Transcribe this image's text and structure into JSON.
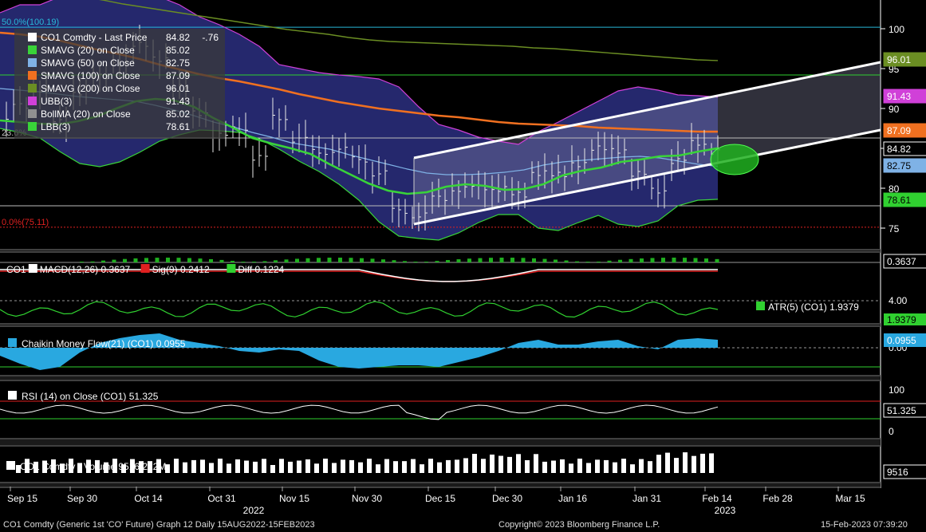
{
  "chart_data": {
    "type": "line",
    "x_axis": {
      "date_ticks": [
        "Sep 15",
        "Sep 30",
        "Oct 14",
        "Oct 31",
        "Nov 15",
        "Nov 30",
        "Dec 15",
        "Dec 30",
        "Jan 16",
        "Jan 31",
        "Feb 14",
        "Feb 28",
        "Mar 15"
      ],
      "year_labels": [
        {
          "label": "2022",
          "at_tick": 3
        },
        {
          "label": "2023",
          "at_tick": 10
        }
      ]
    },
    "price_panel": {
      "y_ticks": [
        100,
        95,
        90,
        85,
        80,
        75
      ],
      "ylim": [
        74,
        104
      ],
      "fib_levels": [
        {
          "label": "50.0%(100.19)",
          "value": 100.19,
          "color": "#28b8d8"
        },
        {
          "label": "23.6%",
          "value": 86.3,
          "color": "#bbbbbb"
        },
        {
          "label": "0.0%(75.11)",
          "value": 75.11,
          "color": "#e02020"
        }
      ],
      "extra_hlines": [
        {
          "value": 94.2,
          "color": "#30d030"
        },
        {
          "value": 77.8,
          "color": "#bbbbbb"
        }
      ],
      "legend": [
        {
          "text": "CO1 Comdty - Last Price",
          "value": "84.82",
          "change": "-.76",
          "color": "#ffffff"
        },
        {
          "text": "SMAVG (20)  on Close",
          "value": "85.02",
          "color": "#39d339"
        },
        {
          "text": "SMAVG (50)  on Close",
          "value": "82.75",
          "color": "#7fb2e6"
        },
        {
          "text": "SMAVG (100)  on Close",
          "value": "87.09",
          "color": "#f07020"
        },
        {
          "text": "SMAVG (200)  on Close",
          "value": "96.01",
          "color": "#6b8e23"
        },
        {
          "text": "UBB(3)",
          "value": "91.43",
          "color": "#d040d8"
        },
        {
          "text": "BollMA (20)  on Close",
          "value": "85.02",
          "color": "#909090"
        },
        {
          "text": "LBB(3)",
          "value": "78.61",
          "color": "#39d339"
        }
      ],
      "right_tags": [
        {
          "value": "96.01",
          "bg": "#6b8e23",
          "fg": "#ffffff"
        },
        {
          "value": "91.43",
          "bg": "#d040d8",
          "fg": "#ffffff"
        },
        {
          "value": "87.09",
          "bg": "#f07020",
          "fg": "#ffffff"
        },
        {
          "value": "84.82",
          "bg": "#000000",
          "fg": "#ffffff"
        },
        {
          "value": "82.75",
          "bg": "#7fb2e6",
          "fg": "#000000"
        },
        {
          "value": "78.61",
          "bg": "#30d030",
          "fg": "#000000"
        }
      ],
      "series": {
        "sma20": [
          88.5,
          88.3,
          88.1,
          88.0,
          88.4,
          89.0,
          90.0,
          90.9,
          91.2,
          91.0,
          90.2,
          88.8,
          87.6,
          86.3,
          85.6,
          85.0,
          84.3,
          83.0,
          81.8,
          80.6,
          79.7,
          79.3,
          79.5,
          80.2,
          80.5,
          80.3,
          79.8,
          79.9,
          80.5,
          81.6,
          82.2,
          82.6,
          83.3,
          83.6,
          84.0,
          84.1,
          84.6,
          85.02
        ],
        "sma50": [
          92.5,
          92.3,
          92.1,
          91.8,
          91.5,
          91.3,
          91.1,
          90.9,
          90.4,
          89.8,
          89.1,
          88.3,
          87.7,
          87.0,
          86.4,
          85.7,
          85.3,
          84.9,
          84.2,
          83.6,
          83.0,
          82.4,
          81.9,
          81.7,
          81.7,
          81.8,
          82.0,
          82.3,
          82.9,
          83.3,
          83.5,
          83.7,
          83.9,
          84.0,
          83.8,
          83.4,
          83.0,
          82.75
        ],
        "sma100": [
          99.5,
          99.3,
          99.0,
          98.5,
          97.9,
          97.3,
          96.8,
          96.2,
          95.5,
          94.9,
          94.3,
          93.8,
          93.4,
          92.9,
          92.4,
          91.8,
          91.3,
          90.8,
          90.4,
          90.0,
          89.7,
          89.4,
          89.1,
          88.9,
          88.6,
          88.3,
          88.1,
          88.0,
          87.9,
          87.8,
          87.6,
          87.5,
          87.4,
          87.3,
          87.2,
          87.1,
          87.09
        ],
        "sma200": [
          106,
          105.5,
          105,
          104.5,
          104.0,
          103.6,
          103.1,
          102.7,
          102.3,
          101.9,
          101.5,
          101.1,
          100.7,
          100.3,
          99.9,
          99.6,
          99.3,
          98.9,
          98.6,
          98.4,
          98.3,
          98.2,
          98.1,
          98.0,
          97.9,
          97.8,
          97.6,
          97.5,
          97.3,
          97.1,
          96.9,
          96.7,
          96.5,
          96.3,
          96.1,
          96.01
        ],
        "ubb": [
          102,
          103,
          103,
          104,
          104,
          104.5,
          105,
          105,
          104,
          103,
          101.5,
          100.5,
          99.3,
          97.8,
          95.5,
          95.0,
          94.5,
          94.2,
          94.0,
          93.7,
          92.7,
          90.2,
          88.0,
          87.3,
          86.4,
          85.9,
          85.5,
          87.1,
          88.3,
          89.6,
          90.9,
          92.2,
          92.7,
          92.3,
          91.7,
          91.6,
          91.43
        ],
        "lbb": [
          87.5,
          87.0,
          86.3,
          84.6,
          83.1,
          82.7,
          83.3,
          84.5,
          85.9,
          86.7,
          87.3,
          87.2,
          87.0,
          86.2,
          84.9,
          83.4,
          82.1,
          80.5,
          78.5,
          75.8,
          74.0,
          73.7,
          73.5,
          74.4,
          75.7,
          76.7,
          76.7,
          75.0,
          74.7,
          75.7,
          76.6,
          75.5,
          75.2,
          75.9,
          77.8,
          78.5,
          78.61
        ],
        "ohlc_close": [
          88.1,
          90.6,
          92.1,
          88.6,
          91.7,
          94.3,
          95.3,
          98.3,
          95.9,
          93.0,
          89.1,
          86.9,
          87.1,
          84.1,
          88.6,
          86.3,
          84.4,
          84.9,
          83.6,
          81.8,
          77.3,
          76.4,
          79.0,
          79.6,
          80.4,
          79.6,
          79.5,
          81.6,
          82.0,
          82.7,
          85.3,
          84.4,
          82.1,
          79.4,
          83.7,
          85.4,
          84.82
        ]
      },
      "channel": {
        "upper_start": 83.8,
        "upper_end": 95.8,
        "lower_start": 75.5,
        "lower_end": 87.3
      }
    },
    "macd_panel": {
      "legend": [
        {
          "text": "CO1",
          "color": "#ffffff",
          "swatch": false
        },
        {
          "text": "MACD(12,26) 0.3637",
          "color": "#ffffff",
          "swatch": true
        },
        {
          "text": "Sig(9) 0.2412",
          "color": "#e02020",
          "swatch": true
        },
        {
          "text": "Diff 0.1224",
          "color": "#30d030",
          "swatch": true
        }
      ],
      "tag": "0.3637"
    },
    "atr_panel": {
      "legend": "ATR(5) (CO1) 1.9379",
      "tick": "4.00",
      "tag": "1.9379"
    },
    "cmf_panel": {
      "legend": "Chaikin Money Flow(21) (CO1) 0.0955",
      "tick": "0.00",
      "tag": "0.0955"
    },
    "rsi_panel": {
      "legend": "RSI (14)  on Close (CO1) 51.325",
      "ticks": [
        "100",
        "0"
      ],
      "tag": "51.325"
    },
    "volume_panel": {
      "legend": "CO1 Comdty - Volume 9516 222M",
      "tag": "9516"
    }
  },
  "footer": {
    "left": "CO1 Comdty (Generic 1st 'CO' Future) Graph 12  Daily 15AUG2022-15FEB2023",
    "center": "Copyright© 2023 Bloomberg Finance L.P.",
    "right": "15-Feb-2023 07:39:20"
  }
}
